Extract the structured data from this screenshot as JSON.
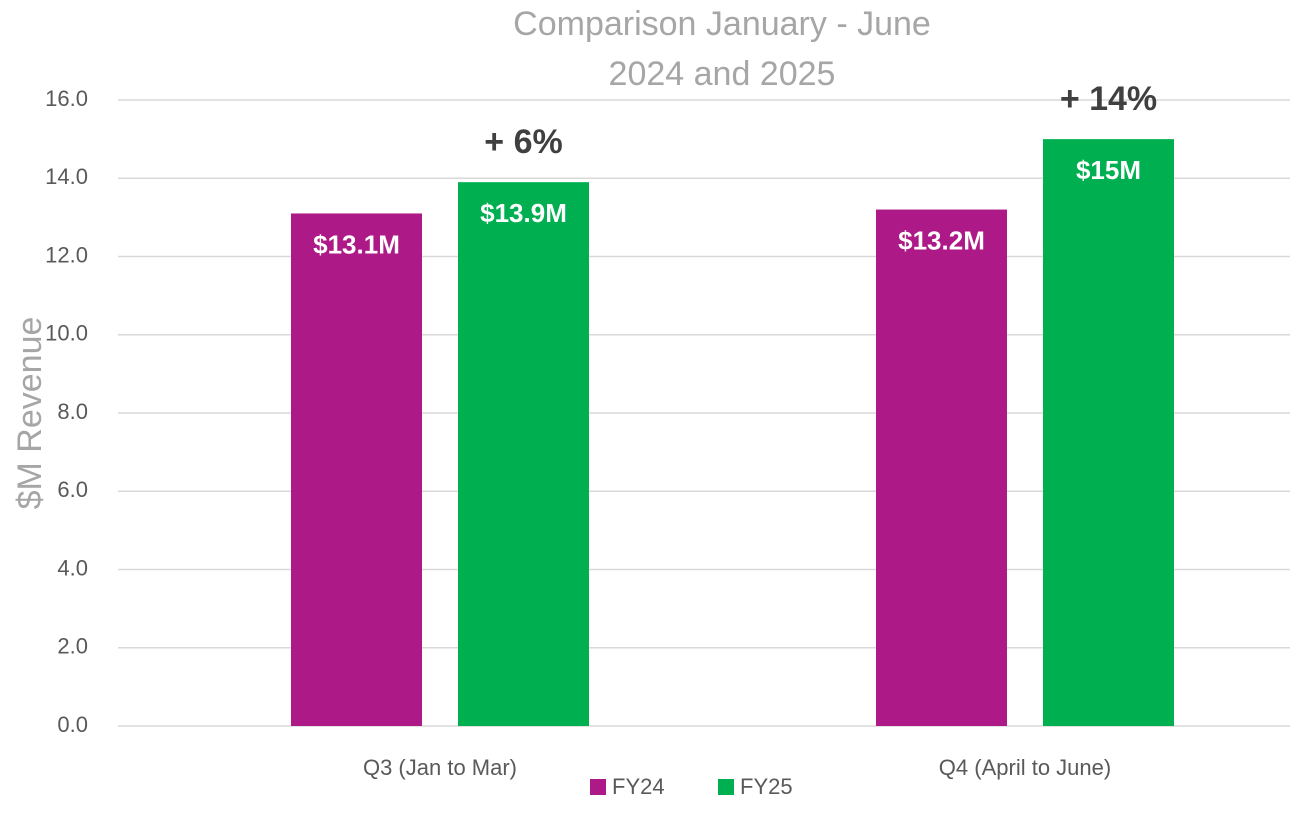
{
  "chart_data": {
    "type": "bar",
    "title": [
      "Comparison January - June",
      "2024 and 2025"
    ],
    "ylabel": "$M Revenue",
    "categories": [
      "Q3 (Jan to Mar)",
      "Q4 (April to June)"
    ],
    "series": [
      {
        "name": "FY24",
        "color": "#ad1a87",
        "values": [
          13.1,
          13.2
        ],
        "value_labels": [
          "$13.1M",
          "$13.2M"
        ]
      },
      {
        "name": "FY25",
        "color": "#00b050",
        "values": [
          13.9,
          15
        ],
        "value_labels": [
          "$13.9M",
          "$15M"
        ]
      }
    ],
    "annotations": [
      "+ 6%",
      "+ 14%"
    ],
    "ylim": [
      0,
      16
    ],
    "yticks": [
      {
        "value": 0,
        "label": "0.0"
      },
      {
        "value": 2,
        "label": "2.0"
      },
      {
        "value": 4,
        "label": "4.0"
      },
      {
        "value": 6,
        "label": "6.0"
      },
      {
        "value": 8,
        "label": "8.0"
      },
      {
        "value": 10,
        "label": "10.0"
      },
      {
        "value": 12,
        "label": "12.0"
      },
      {
        "value": 14,
        "label": "14.0"
      },
      {
        "value": 16,
        "label": "16.0"
      }
    ],
    "grid": true,
    "legend": "bottom"
  }
}
